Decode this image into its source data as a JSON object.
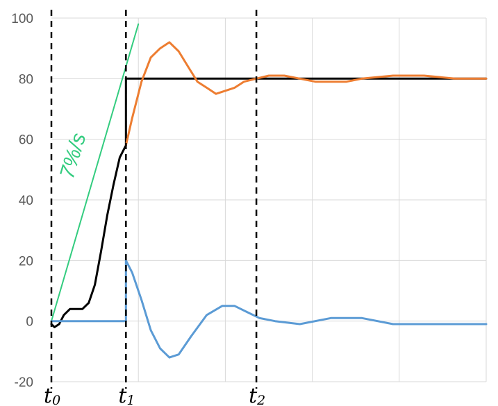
{
  "chart_data": {
    "type": "line",
    "ylim": [
      -20,
      100
    ],
    "yticks": [
      "100",
      "80",
      "60",
      "40",
      "20",
      "0",
      "-20"
    ],
    "xlim": [
      0,
      14
    ],
    "grid": true,
    "colors": {
      "orange": "#ED7D31",
      "blue": "#5B9BD5",
      "black": "#000000",
      "green": "#33CC7F",
      "grid": "#D9D9D9"
    },
    "markers": [
      {
        "label": "t",
        "sub": "0",
        "x": 0
      },
      {
        "label": "t",
        "sub": "1",
        "x": 2.4
      },
      {
        "label": "t",
        "sub": "2",
        "x": 6.6
      }
    ],
    "ramp_annotation": "7%/s",
    "series": [
      {
        "color_key": "green",
        "x": [
          0,
          2.8
        ],
        "y": [
          0,
          98
        ]
      },
      {
        "color_key": "black",
        "x": [
          0,
          0.1,
          0.25,
          0.4,
          0.6,
          0.8,
          1.0,
          1.2,
          1.4,
          1.6,
          1.8,
          2.0,
          2.2,
          2.4,
          2.4,
          14
        ],
        "y": [
          -1,
          -2,
          -1,
          2,
          4,
          4,
          4,
          6,
          12,
          23,
          35,
          45,
          54,
          58,
          80,
          80
        ]
      },
      {
        "color_key": "orange",
        "x": [
          2.4,
          2.6,
          2.9,
          3.2,
          3.5,
          3.8,
          4.1,
          4.4,
          4.7,
          5.0,
          5.3,
          5.6,
          5.9,
          6.2,
          6.6,
          7.0,
          7.5,
          8.0,
          8.5,
          9.0,
          9.5,
          10.0,
          11.0,
          12.0,
          13.0,
          14.0
        ],
        "y": [
          58,
          67,
          79,
          87,
          90,
          92,
          89,
          84,
          79,
          77,
          75,
          76,
          77,
          79,
          80,
          81,
          81,
          80,
          79,
          79,
          79,
          80,
          81,
          81,
          80,
          80
        ]
      },
      {
        "color_key": "blue",
        "x": [
          0,
          2.4,
          2.4,
          2.6,
          2.9,
          3.2,
          3.5,
          3.8,
          4.1,
          4.5,
          5.0,
          5.5,
          5.9,
          6.3,
          6.7,
          7.2,
          8.0,
          9.0,
          10.0,
          11.0,
          12.0,
          13.0,
          14.0
        ],
        "y": [
          0,
          0,
          20,
          16,
          7,
          -3,
          -9,
          -12,
          -11,
          -5,
          2,
          5,
          5,
          3,
          1,
          0,
          -1,
          1,
          1,
          -1,
          -1,
          -1,
          -1
        ]
      }
    ]
  }
}
